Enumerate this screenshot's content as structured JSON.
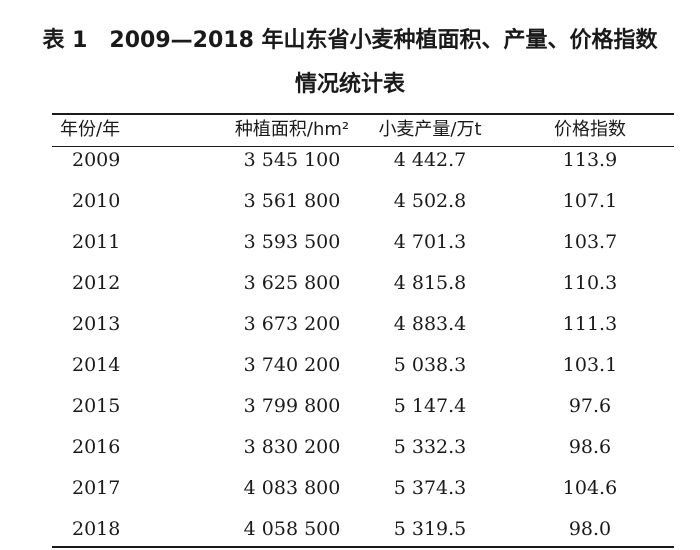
{
  "title": {
    "label": "表 1",
    "line1": "2009—2018 年山东省小麦种植面积、产量、价格指数",
    "line2": "情况统计表"
  },
  "table": {
    "headers": {
      "year": "年份/年",
      "area": "种植面积/hm²",
      "production": "小麦产量/万t",
      "price_index": "价格指数"
    },
    "rows": [
      {
        "year": "2009",
        "area": "3 545 100",
        "production": "4 442.7",
        "price_index": "113.9"
      },
      {
        "year": "2010",
        "area": "3 561 800",
        "production": "4 502.8",
        "price_index": "107.1"
      },
      {
        "year": "2011",
        "area": "3 593 500",
        "production": "4 701.3",
        "price_index": "103.7"
      },
      {
        "year": "2012",
        "area": "3 625 800",
        "production": "4 815.8",
        "price_index": "110.3"
      },
      {
        "year": "2013",
        "area": "3 673 200",
        "production": "4 883.4",
        "price_index": "111.3"
      },
      {
        "year": "2014",
        "area": "3 740 200",
        "production": "5 038.3",
        "price_index": "103.1"
      },
      {
        "year": "2015",
        "area": "3 799 800",
        "production": "5 147.4",
        "price_index": "97.6"
      },
      {
        "year": "2016",
        "area": "3 830 200",
        "production": "5 332.3",
        "price_index": "98.6"
      },
      {
        "year": "2017",
        "area": "4 083 800",
        "production": "5 374.3",
        "price_index": "104.6"
      },
      {
        "year": "2018",
        "area": "4 058 500",
        "production": "5 319.5",
        "price_index": "98.0"
      }
    ]
  }
}
